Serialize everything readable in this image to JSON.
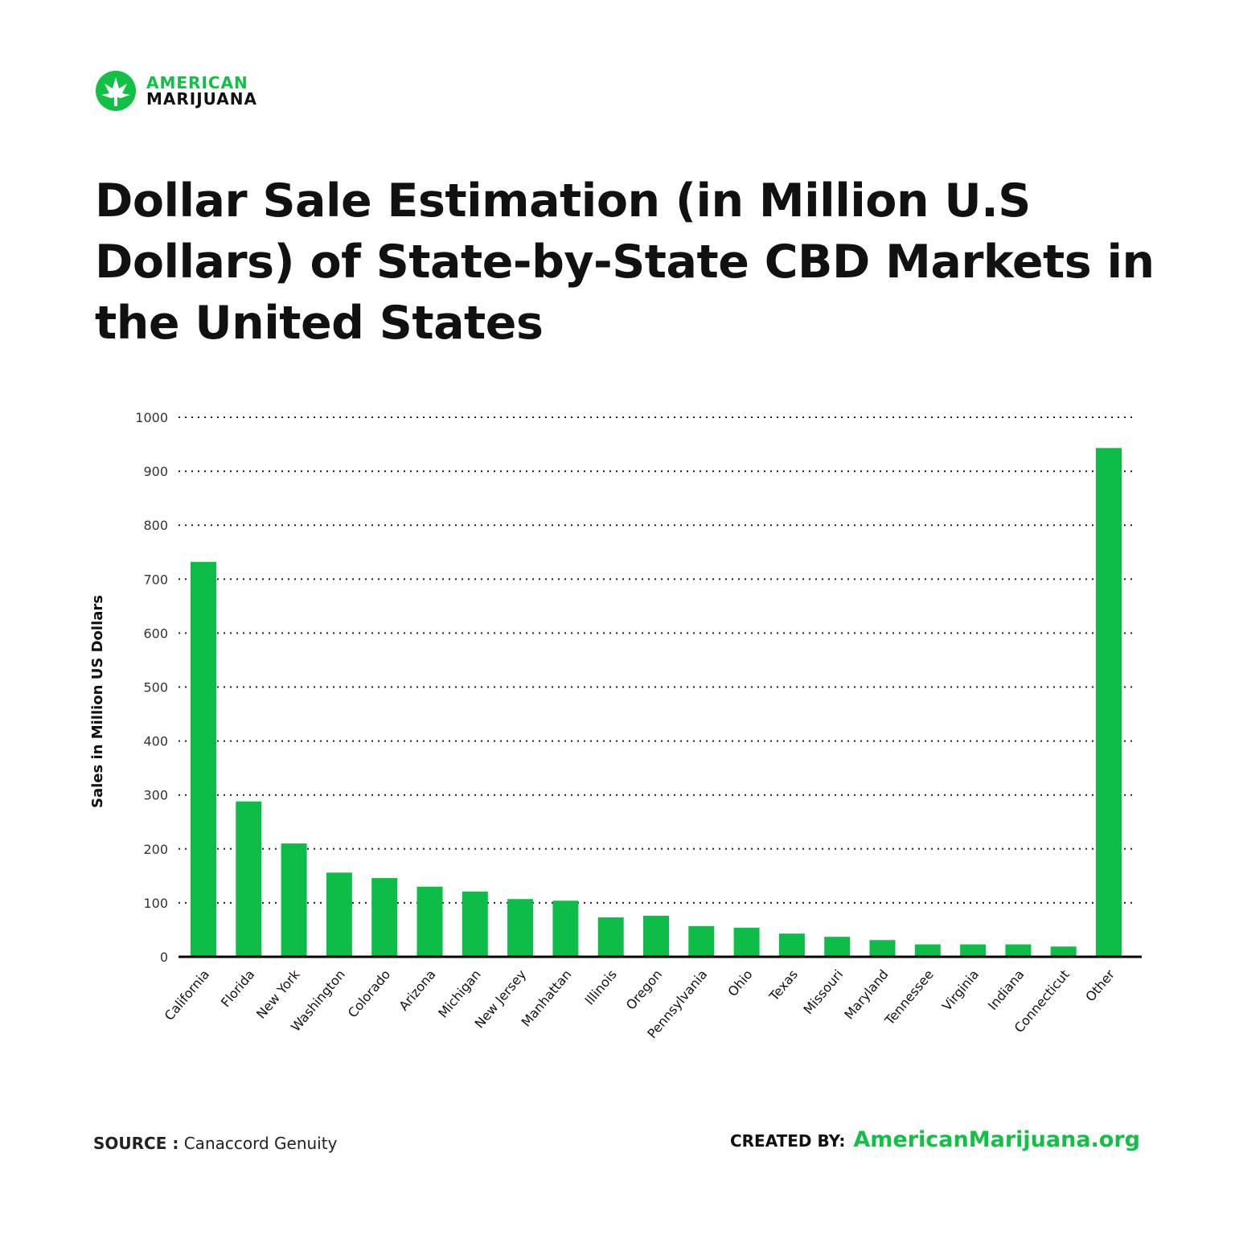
{
  "logo": {
    "line1": "AMERICAN",
    "line2": "MARIJUANA",
    "icon": "cannabis-leaf-icon",
    "brand_color": "#12c144"
  },
  "title": "Dollar Sale Estimation (in Million U.S Dollars) of State-by-State CBD Markets in the United States",
  "chart_data": {
    "type": "bar",
    "title": "Dollar Sale Estimation (in Million U.S Dollars) of State-by-State CBD Markets in the United States",
    "xlabel": "",
    "ylabel": "Sales in Million US Dollars",
    "ylim": [
      0,
      1000
    ],
    "yticks": [
      0,
      100,
      200,
      300,
      400,
      500,
      600,
      700,
      800,
      900,
      1000
    ],
    "grid": true,
    "bar_color": "#0dbd48",
    "categories": [
      "California",
      "Florida",
      "New York",
      "Washington",
      "Colorado",
      "Arizona",
      "Michigan",
      "New Jersey",
      "Manhattan",
      "Illinois",
      "Oregon",
      "Pennsylvania",
      "Ohio",
      "Texas",
      "Missouri",
      "Maryland",
      "Tennessee",
      "Virginia",
      "Indiana",
      "Connecticut",
      "Other"
    ],
    "values": [
      732,
      288,
      210,
      156,
      146,
      130,
      121,
      107,
      104,
      73,
      76,
      57,
      54,
      43,
      37,
      31,
      23,
      23,
      23,
      19,
      943
    ]
  },
  "footer": {
    "source_label": "SOURCE :",
    "source": "Canaccord Genuity",
    "created_label": "CREATED BY:",
    "site": "AmericanMarijuana.org"
  }
}
